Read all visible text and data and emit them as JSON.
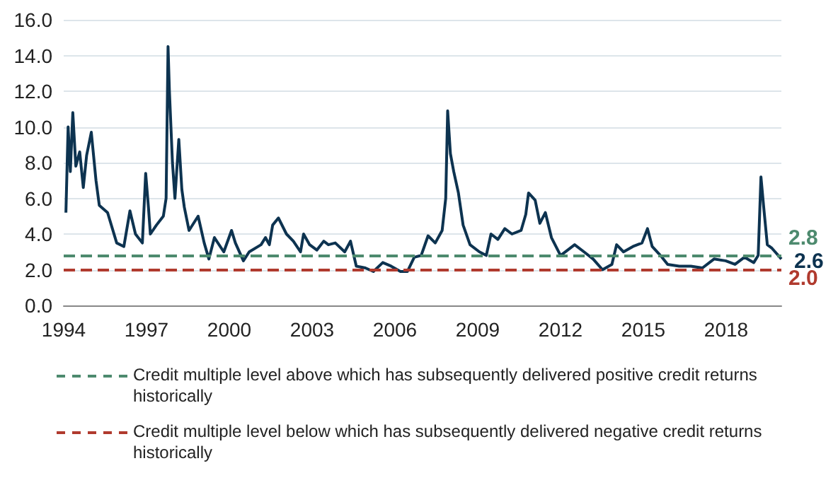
{
  "chart_data": {
    "type": "line",
    "x": [
      1994.08,
      1994.16,
      1994.24,
      1994.33,
      1994.44,
      1994.58,
      1994.71,
      1994.83,
      1995.0,
      1995.17,
      1995.29,
      1995.59,
      1995.92,
      1996.18,
      1996.4,
      1996.6,
      1996.85,
      1996.97,
      1997.07,
      1997.14,
      1997.36,
      1997.61,
      1997.71,
      1997.78,
      1997.83,
      1997.94,
      1998.03,
      1998.17,
      1998.28,
      1998.37,
      1998.54,
      1998.87,
      1999.09,
      1999.26,
      1999.46,
      1999.8,
      2000.08,
      2000.22,
      2000.51,
      2000.72,
      2001.15,
      2001.31,
      2001.45,
      2001.57,
      2001.78,
      2002.07,
      2002.32,
      2002.58,
      2002.69,
      2002.91,
      2003.17,
      2003.42,
      2003.59,
      2003.84,
      2004.18,
      2004.39,
      2004.6,
      2004.93,
      2005.22,
      2005.56,
      2005.86,
      2006.2,
      2006.45,
      2006.7,
      2006.95,
      2007.2,
      2007.46,
      2007.71,
      2007.84,
      2007.91,
      2008.01,
      2008.13,
      2008.3,
      2008.47,
      2008.72,
      2009.06,
      2009.31,
      2009.48,
      2009.73,
      2009.98,
      2010.24,
      2010.57,
      2010.74,
      2010.84,
      2011.08,
      2011.25,
      2011.45,
      2011.67,
      2012.0,
      2012.26,
      2012.51,
      2012.85,
      2013.18,
      2013.52,
      2013.86,
      2014.03,
      2014.28,
      2014.62,
      2014.95,
      2015.15,
      2015.32,
      2015.62,
      2015.88,
      2016.3,
      2016.72,
      2017.14,
      2017.56,
      2017.98,
      2018.32,
      2018.66,
      2019.0,
      2019.16,
      2019.26,
      2019.36,
      2019.49,
      2019.66,
      2019.83,
      2020.0
    ],
    "series": [
      {
        "color": "#0d3350",
        "values": [
          5.2,
          10.0,
          7.5,
          10.8,
          7.8,
          8.6,
          6.6,
          8.4,
          9.7,
          7.0,
          5.6,
          5.2,
          3.5,
          3.3,
          5.3,
          4.0,
          3.5,
          7.4,
          5.5,
          4.0,
          4.5,
          5.0,
          6.0,
          14.5,
          12.0,
          8.0,
          6.0,
          9.3,
          6.5,
          5.5,
          4.2,
          5.0,
          3.5,
          2.6,
          3.8,
          3.0,
          4.2,
          3.5,
          2.5,
          3.0,
          3.4,
          3.8,
          3.4,
          4.5,
          4.9,
          4.0,
          3.6,
          3.0,
          4.0,
          3.4,
          3.1,
          3.6,
          3.4,
          3.5,
          3.0,
          3.6,
          2.2,
          2.1,
          1.9,
          2.4,
          2.2,
          1.9,
          1.9,
          2.7,
          2.8,
          3.9,
          3.5,
          4.2,
          6.0,
          10.9,
          8.5,
          7.5,
          6.3,
          4.5,
          3.4,
          3.0,
          2.8,
          4.0,
          3.7,
          4.3,
          4.0,
          4.2,
          5.1,
          6.3,
          5.9,
          4.6,
          5.2,
          3.8,
          2.8,
          3.1,
          3.4,
          3.0,
          2.6,
          2.0,
          2.3,
          3.4,
          3.0,
          3.3,
          3.5,
          4.3,
          3.3,
          2.8,
          2.3,
          2.2,
          2.2,
          2.1,
          2.6,
          2.5,
          2.3,
          2.7,
          2.4,
          2.8,
          7.2,
          5.5,
          3.4,
          3.2,
          2.9,
          2.6
        ],
        "value_labels": [
          null,
          null,
          null,
          null,
          null,
          null,
          null,
          null,
          null,
          null,
          null,
          null,
          null,
          null,
          null,
          null,
          null,
          null,
          null,
          null,
          null,
          null,
          null,
          null,
          null,
          null,
          null,
          null,
          null,
          null,
          null,
          null,
          null,
          null,
          null,
          null,
          null,
          null,
          null,
          null,
          null,
          null,
          null,
          null,
          null,
          null,
          null,
          null,
          null,
          null,
          null,
          null,
          null,
          null,
          null,
          null,
          null,
          null,
          null,
          null,
          null,
          null,
          null,
          null,
          null,
          null,
          null,
          null,
          null,
          null,
          null,
          null,
          null,
          null,
          null,
          null,
          null,
          null,
          null,
          null,
          null,
          null,
          null,
          null,
          null,
          null,
          null,
          null,
          null,
          null,
          null,
          null,
          null,
          null,
          null,
          null,
          null,
          null,
          null,
          null,
          null,
          null,
          null,
          null,
          null,
          null,
          null,
          null,
          null,
          null,
          null,
          null,
          null,
          null,
          null,
          null,
          null,
          "2.6"
        ]
      }
    ],
    "xlim": [
      1994,
      2020
    ],
    "xticks": [
      1994,
      1997,
      2000,
      2003,
      2006,
      2009,
      2012,
      2015,
      2018
    ],
    "ylim": [
      0,
      16
    ],
    "yticks": [
      {
        "value": 0,
        "label": "0.0"
      },
      {
        "value": 2,
        "label": "2.0"
      },
      {
        "value": 4,
        "label": "4.0"
      },
      {
        "value": 6,
        "label": "6.0"
      },
      {
        "value": 8,
        "label": "8.0"
      },
      {
        "value": 10,
        "label": "10.0"
      },
      {
        "value": 12,
        "label": "12.0"
      },
      {
        "value": 14,
        "label": "14.0"
      },
      {
        "value": 16,
        "label": "16.0"
      }
    ],
    "grid": "y",
    "ref_lines": [
      {
        "axis": "y",
        "value": 2.8,
        "label": "2.8",
        "color": "#4d8a6e",
        "line_style": "dashed"
      },
      {
        "axis": "y",
        "value": 2.0,
        "label": "2.0",
        "color": "#b03a2e",
        "line_style": "dashed"
      }
    ],
    "annotations": [
      "Credit multiple level above which has subsequently delivered positive credit returns historically",
      "Credit multiple level below which has subsequently delivered negative credit returns historically"
    ]
  }
}
